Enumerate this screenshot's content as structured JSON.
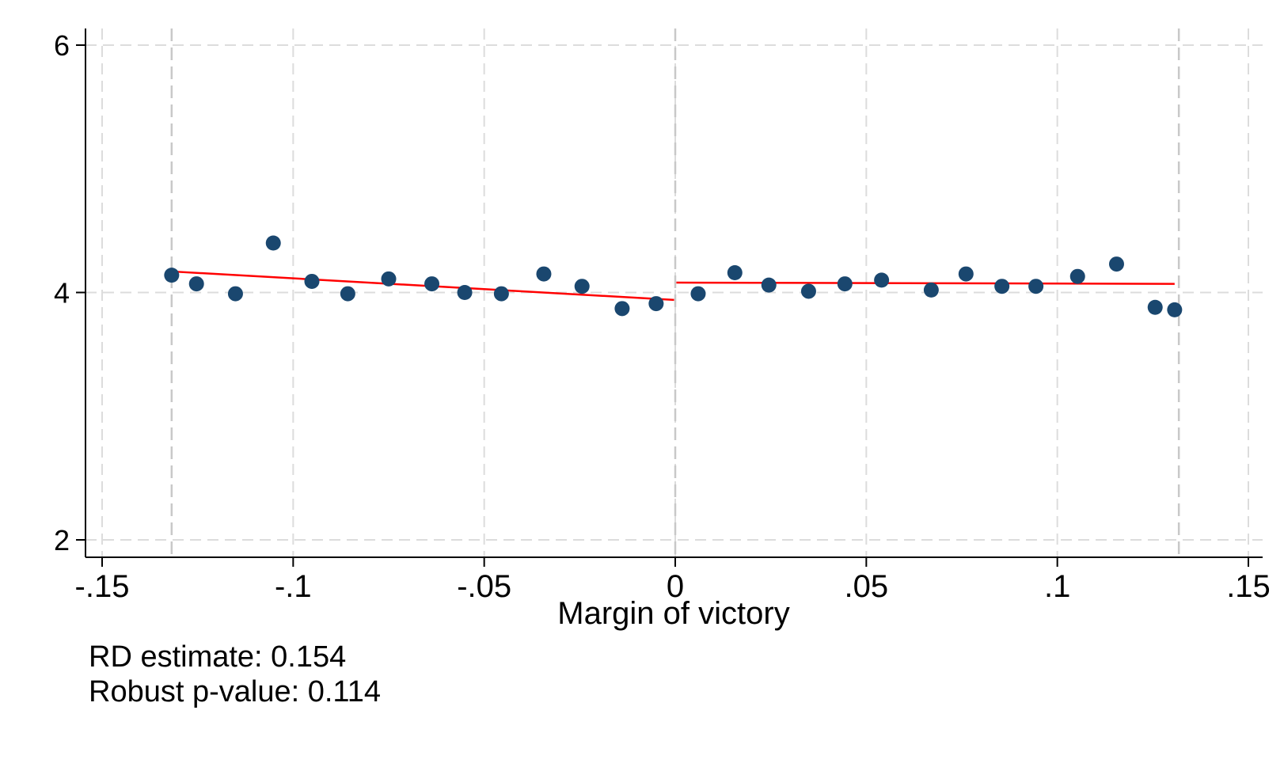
{
  "chart_data": {
    "type": "scatter",
    "title": "",
    "xlabel": "Margin of victory",
    "ylabel": "",
    "xlim": [
      -0.15,
      0.15
    ],
    "ylim": [
      2,
      6
    ],
    "x_ticks": [
      -0.15,
      -0.1,
      -0.05,
      0,
      0.05,
      0.1,
      0.15
    ],
    "x_tick_labels": [
      "-.15",
      "-.1",
      "-.05",
      "0",
      ".05",
      ".1",
      ".15"
    ],
    "y_ticks": [
      2,
      4,
      6
    ],
    "y_tick_labels": [
      "2",
      "4",
      "6"
    ],
    "grid": true,
    "cutoff": 0,
    "bandwidth_lines": [
      -0.1318,
      0.1318
    ],
    "colors": {
      "points": "#1a476f",
      "fit": "#ff0000",
      "grid": "#dcdcdc",
      "reference": "#c8c8c8"
    },
    "series": [
      {
        "points": [
          {
            "x": -0.1318,
            "y": 4.14
          },
          {
            "x": -0.1253,
            "y": 4.07
          },
          {
            "x": -0.1151,
            "y": 3.99
          },
          {
            "x": -0.1052,
            "y": 4.4
          },
          {
            "x": -0.0951,
            "y": 4.09
          },
          {
            "x": -0.0857,
            "y": 3.99
          },
          {
            "x": -0.075,
            "y": 4.11
          },
          {
            "x": -0.0637,
            "y": 4.07
          },
          {
            "x": -0.0551,
            "y": 4.0
          },
          {
            "x": -0.0455,
            "y": 3.99
          },
          {
            "x": -0.0344,
            "y": 4.15
          },
          {
            "x": -0.0244,
            "y": 4.05
          },
          {
            "x": -0.0139,
            "y": 3.87
          },
          {
            "x": -0.005,
            "y": 3.91
          },
          {
            "x": 0.006,
            "y": 3.99
          },
          {
            "x": 0.0156,
            "y": 4.16
          },
          {
            "x": 0.0245,
            "y": 4.06
          },
          {
            "x": 0.0349,
            "y": 4.01
          },
          {
            "x": 0.0444,
            "y": 4.07
          },
          {
            "x": 0.054,
            "y": 4.1
          },
          {
            "x": 0.067,
            "y": 4.02
          },
          {
            "x": 0.0761,
            "y": 4.15
          },
          {
            "x": 0.0855,
            "y": 4.05
          },
          {
            "x": 0.0944,
            "y": 4.05
          },
          {
            "x": 0.1053,
            "y": 4.13
          },
          {
            "x": 0.1155,
            "y": 4.23
          },
          {
            "x": 0.1256,
            "y": 3.88
          },
          {
            "x": 0.1307,
            "y": 3.86
          }
        ]
      }
    ],
    "fit_lines": [
      {
        "x": [
          -0.1318,
          -0.0003
        ],
        "y": [
          4.17,
          3.94
        ]
      },
      {
        "x": [
          0.0003,
          0.1307
        ],
        "y": [
          4.08,
          4.07
        ]
      }
    ]
  },
  "notes": {
    "rd_estimate": "RD estimate: 0.154",
    "p_value": "Robust p-value: 0.114"
  }
}
